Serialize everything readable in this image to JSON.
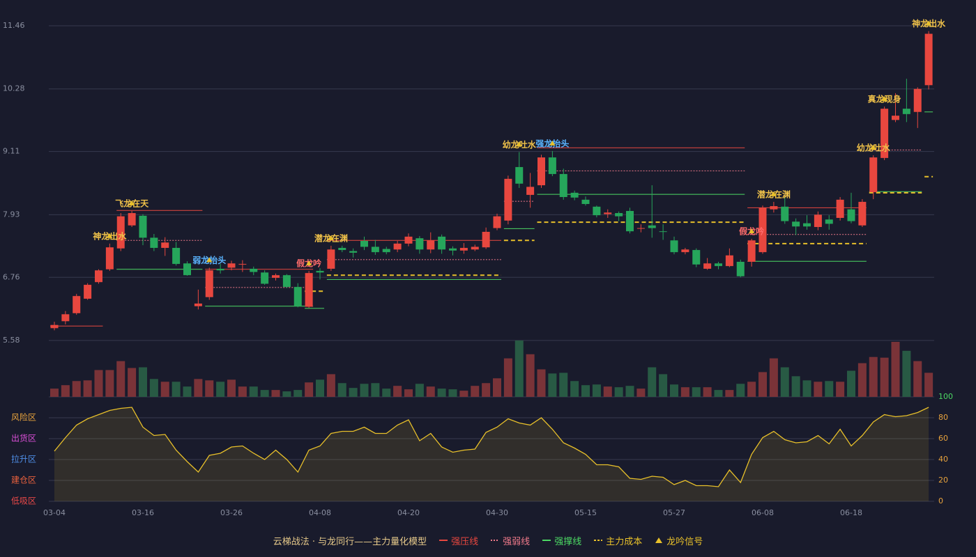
{
  "chart_data": {
    "type": "candlestick",
    "categories": [
      "03-04",
      null,
      null,
      null,
      null,
      null,
      null,
      null,
      "03-16",
      null,
      null,
      null,
      null,
      null,
      null,
      null,
      "03-26",
      null,
      null,
      null,
      null,
      null,
      null,
      null,
      "04-08",
      null,
      null,
      null,
      null,
      null,
      null,
      null,
      "04-20",
      null,
      null,
      null,
      null,
      null,
      null,
      null,
      "04-30",
      null,
      null,
      null,
      null,
      null,
      null,
      null,
      "05-15",
      null,
      null,
      null,
      null,
      null,
      null,
      null,
      "05-27",
      null,
      null,
      null,
      null,
      null,
      null,
      null,
      "06-08",
      null,
      null,
      null,
      null,
      null,
      null,
      null,
      "06-18",
      null,
      null,
      null,
      null,
      null,
      null,
      null
    ],
    "open": [
      5.81,
      5.94,
      6.09,
      6.36,
      6.67,
      6.91,
      7.3,
      7.73,
      7.91,
      7.5,
      7.31,
      7.31,
      7.02,
      6.22,
      6.39,
      6.92,
      6.94,
      7.0,
      6.92,
      6.85,
      6.75,
      6.8,
      6.58,
      6.21,
      6.88,
      6.92,
      7.31,
      7.25,
      7.44,
      7.33,
      7.29,
      7.28,
      7.39,
      7.49,
      7.28,
      7.52,
      7.3,
      7.26,
      7.28,
      7.32,
      7.68,
      7.82,
      8.82,
      8.3,
      8.48,
      9.0,
      8.69,
      8.34,
      8.21,
      8.08,
      7.94,
      7.96,
      8.0,
      7.67,
      7.73,
      7.62,
      7.45,
      7.23,
      7.27,
      6.92,
      7.02,
      6.97,
      7.05,
      7.05,
      7.23,
      8.03,
      8.08,
      7.8,
      7.77,
      7.7,
      7.84,
      7.87,
      8.03,
      7.73,
      8.35,
      8.99,
      9.7,
      9.91,
      9.85,
      10.35
    ],
    "high": [
      5.93,
      6.13,
      6.45,
      6.65,
      6.91,
      7.39,
      7.96,
      8.0,
      7.94,
      7.57,
      7.51,
      7.42,
      7.06,
      6.53,
      6.94,
      7.01,
      7.07,
      7.08,
      6.96,
      6.89,
      6.83,
      6.82,
      6.65,
      6.88,
      6.93,
      7.35,
      7.35,
      7.3,
      7.52,
      7.46,
      7.33,
      7.44,
      7.58,
      7.53,
      7.6,
      7.56,
      7.34,
      7.4,
      7.37,
      7.69,
      7.95,
      8.66,
      9.1,
      8.71,
      9.05,
      9.12,
      8.79,
      8.38,
      8.27,
      8.1,
      8.03,
      7.99,
      8.06,
      7.75,
      8.48,
      7.75,
      7.52,
      7.31,
      7.3,
      7.12,
      7.05,
      7.3,
      7.09,
      7.48,
      8.1,
      8.17,
      8.26,
      7.86,
      7.92,
      7.99,
      7.92,
      8.26,
      8.34,
      8.22,
      9.04,
      9.95,
      10.2,
      10.47,
      10.31,
      11.36
    ],
    "low": [
      5.77,
      5.88,
      6.06,
      6.34,
      6.64,
      6.88,
      7.25,
      7.7,
      7.36,
      7.25,
      7.16,
      6.98,
      6.79,
      6.16,
      6.34,
      6.83,
      6.89,
      6.86,
      6.8,
      6.62,
      6.7,
      6.56,
      6.2,
      6.19,
      6.72,
      6.88,
      7.23,
      7.13,
      7.27,
      7.18,
      7.19,
      7.23,
      7.34,
      7.2,
      7.21,
      7.2,
      7.17,
      7.2,
      7.25,
      7.29,
      7.64,
      7.75,
      8.43,
      8.06,
      8.43,
      8.65,
      8.21,
      8.2,
      8.1,
      7.88,
      7.87,
      7.81,
      7.58,
      7.6,
      7.5,
      7.46,
      7.19,
      7.19,
      6.95,
      6.9,
      6.91,
      6.95,
      6.76,
      6.96,
      7.2,
      7.97,
      7.76,
      7.55,
      7.65,
      7.64,
      7.65,
      7.82,
      7.77,
      7.7,
      8.22,
      8.95,
      9.66,
      9.66,
      9.55,
      10.27
    ],
    "close": [
      5.87,
      6.07,
      6.41,
      6.62,
      6.89,
      7.32,
      7.9,
      7.96,
      7.5,
      7.31,
      7.41,
      7.01,
      6.8,
      6.27,
      6.89,
      6.89,
      7.02,
      7.01,
      6.86,
      6.64,
      6.8,
      6.58,
      6.22,
      6.84,
      6.85,
      7.28,
      7.27,
      7.22,
      7.33,
      7.23,
      7.23,
      7.39,
      7.52,
      7.28,
      7.45,
      7.28,
      7.26,
      7.31,
      7.33,
      7.61,
      7.9,
      8.6,
      8.51,
      8.45,
      9.0,
      8.69,
      8.26,
      8.25,
      8.13,
      7.92,
      7.97,
      7.9,
      7.62,
      7.68,
      7.68,
      7.61,
      7.23,
      7.28,
      7.0,
      7.02,
      6.97,
      7.17,
      6.78,
      7.45,
      8.06,
      8.09,
      7.81,
      7.71,
      7.71,
      7.93,
      7.76,
      8.21,
      7.81,
      8.17,
      9.0,
      9.91,
      9.78,
      9.81,
      10.28,
      11.31
    ],
    "up_color": "#e8473f",
    "down_color": "#26a65b",
    "ylim": [
      5.58,
      11.46
    ],
    "yticks": [
      5.58,
      6.76,
      7.93,
      9.11,
      10.28,
      11.46
    ],
    "grid": true,
    "volume": {
      "values": [
        12,
        17,
        23,
        24,
        39,
        39,
        52,
        42,
        43,
        26,
        22,
        22,
        15,
        26,
        24,
        22,
        25,
        15,
        15,
        10,
        10,
        8,
        10,
        21,
        25,
        33,
        20,
        13,
        19,
        20,
        12,
        16,
        11,
        19,
        15,
        12,
        11,
        9,
        16,
        20,
        27,
        56,
        82,
        62,
        40,
        34,
        35,
        23,
        17,
        18,
        15,
        14,
        16,
        12,
        43,
        33,
        18,
        14,
        14,
        14,
        10,
        10,
        19,
        22,
        36,
        56,
        43,
        30,
        24,
        22,
        23,
        22,
        38,
        49,
        58,
        57,
        80,
        67,
        52,
        35
      ],
      "up_color": "#7a3338",
      "down_color": "#285a44"
    },
    "levels": [
      {
        "name": "强压线",
        "color": "#e8473f",
        "style": "solid",
        "segments": [
          {
            "start": 0,
            "end": 4,
            "value": 5.85
          },
          {
            "start": 6,
            "end": 13,
            "value": 8.01
          },
          {
            "start": 14,
            "end": 23,
            "value": 6.91
          },
          {
            "start": 25,
            "end": 40,
            "value": 7.45
          },
          {
            "start": 44,
            "end": 62,
            "value": 9.18
          },
          {
            "start": 63,
            "end": 73,
            "value": 8.06
          }
        ]
      },
      {
        "name": "强弱线",
        "color": "#f07a8a",
        "style": "dotted",
        "segments": [
          {
            "start": 6,
            "end": 13,
            "value": 7.45
          },
          {
            "start": 14,
            "end": 23,
            "value": 6.57
          },
          {
            "start": 25,
            "end": 40,
            "value": 7.09
          },
          {
            "start": 41,
            "end": 43,
            "value": 8.18
          },
          {
            "start": 44,
            "end": 62,
            "value": 8.75
          },
          {
            "start": 63,
            "end": 73,
            "value": 7.56
          },
          {
            "start": 74,
            "end": 78,
            "value": 9.14
          }
        ]
      },
      {
        "name": "强撑线",
        "color": "#4cd964",
        "style": "solid",
        "segments": [
          {
            "start": 6,
            "end": 13,
            "value": 6.91
          },
          {
            "start": 14,
            "end": 23,
            "value": 6.22
          },
          {
            "start": 23,
            "end": 24,
            "value": 6.18
          },
          {
            "start": 25,
            "end": 40,
            "value": 6.72
          },
          {
            "start": 41,
            "end": 43,
            "value": 7.67
          },
          {
            "start": 44,
            "end": 62,
            "value": 8.31
          },
          {
            "start": 63,
            "end": 73,
            "value": 7.06
          },
          {
            "start": 74,
            "end": 78,
            "value": 8.36
          },
          {
            "start": 79,
            "end": 79,
            "value": 9.85
          }
        ]
      },
      {
        "name": "主力成本",
        "color": "#e8c02a",
        "style": "dashed",
        "segments": [
          {
            "start": 23,
            "end": 24,
            "value": 6.5
          },
          {
            "start": 25,
            "end": 40,
            "value": 6.8
          },
          {
            "start": 41,
            "end": 43,
            "value": 7.45
          },
          {
            "start": 44,
            "end": 62,
            "value": 7.79
          },
          {
            "start": 63,
            "end": 73,
            "value": 7.39
          },
          {
            "start": 74,
            "end": 78,
            "value": 8.34
          },
          {
            "start": 79,
            "end": 79,
            "value": 8.64
          }
        ]
      }
    ],
    "signal_name": "龙吟信号",
    "signal_color": "#e8c02a",
    "signals": [
      {
        "label": "神龙出水",
        "index": 5,
        "color": "#f0c24a"
      },
      {
        "label": "飞龙在天",
        "index": 7,
        "color": "#f0c24a"
      },
      {
        "label": "弱龙抬头",
        "index": 14,
        "color": "#5ab4ff"
      },
      {
        "label": "假龙吟",
        "index": 23,
        "color": "#ff6b6b"
      },
      {
        "label": "潜龙在渊",
        "index": 25,
        "color": "#f0c24a"
      },
      {
        "label": "幼龙吐水",
        "index": 42,
        "color": "#f0c24a"
      },
      {
        "label": "强龙抬头",
        "index": 45,
        "color": "#5ab4ff"
      },
      {
        "label": "假龙吟",
        "index": 63,
        "color": "#ff6b6b"
      },
      {
        "label": "潜龙在渊",
        "index": 65,
        "color": "#f0c24a"
      },
      {
        "label": "幼龙吐水",
        "index": 74,
        "color": "#f0c24a"
      },
      {
        "label": "真龙现身",
        "index": 75,
        "color": "#f0c24a"
      },
      {
        "label": "神龙出水",
        "index": 79,
        "color": "#f0c24a"
      }
    ],
    "oscillator": {
      "type": "line",
      "values": [
        48,
        61,
        73,
        79,
        83,
        87,
        89,
        90,
        71,
        63,
        64,
        49,
        38,
        28,
        44,
        46,
        52,
        53,
        46,
        40,
        49,
        40,
        28,
        49,
        53,
        65,
        67,
        67,
        71,
        65,
        65,
        73,
        78,
        58,
        65,
        52,
        47,
        49,
        50,
        66,
        71,
        79,
        75,
        73,
        80,
        69,
        56,
        51,
        45,
        35,
        35,
        33,
        22,
        21,
        24,
        23,
        16,
        20,
        15,
        15,
        14,
        30,
        18,
        45,
        61,
        67,
        59,
        56,
        57,
        63,
        55,
        69,
        53,
        63,
        76,
        83,
        81,
        82,
        85,
        90
      ],
      "color": "#e8c02a",
      "ylim": [
        0,
        100
      ],
      "yticks": [
        0,
        20,
        40,
        60,
        80,
        100
      ],
      "zones": [
        {
          "label": "风险区",
          "value": 80,
          "color": "#e8a33d"
        },
        {
          "label": "出货区",
          "value": 60,
          "color": "#d94fd6"
        },
        {
          "label": "拉升区",
          "value": 40,
          "color": "#4f8fe8"
        },
        {
          "label": "建仓区",
          "value": 20,
          "color": "#e8603d"
        },
        {
          "label": "低吸区",
          "value": 0,
          "color": "#e84848"
        }
      ]
    },
    "legend_title": "云梯战法 · 与龙同行——主力量化模型"
  }
}
